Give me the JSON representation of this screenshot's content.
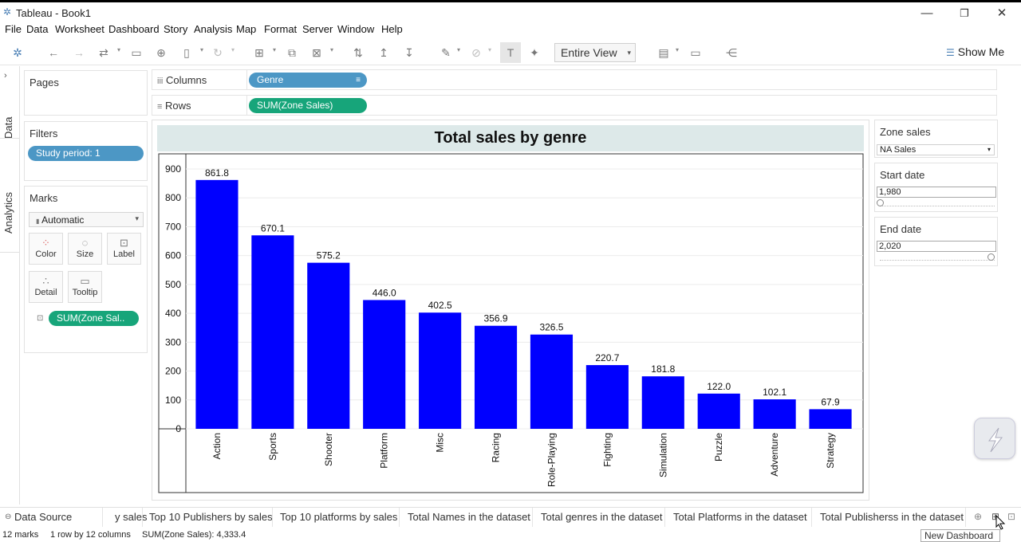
{
  "window": {
    "title": "Tableau - Book1"
  },
  "menu": [
    "File",
    "Data",
    "Worksheet",
    "Dashboard",
    "Story",
    "Analysis",
    "Map",
    "Format",
    "Server",
    "Window",
    "Help"
  ],
  "toolbar": {
    "fit_value": "Entire View",
    "show_me": "Show Me"
  },
  "side_tabs": {
    "data": "Data",
    "analytics": "Analytics"
  },
  "pages": {
    "title": "Pages"
  },
  "filters": {
    "title": "Filters",
    "pill": "Study period: 1"
  },
  "marks": {
    "title": "Marks",
    "type": "Automatic",
    "buttons": [
      "Color",
      "Size",
      "Label",
      "Detail",
      "Tooltip"
    ],
    "pill": "SUM(Zone Sal.."
  },
  "shelves": {
    "columns_label": "Columns",
    "columns_pill": "Genre",
    "rows_label": "Rows",
    "rows_pill": "SUM(Zone Sales)"
  },
  "controls": {
    "zone_sales": {
      "title": "Zone sales",
      "value": "NA Sales"
    },
    "start_date": {
      "title": "Start date",
      "value": "1,980",
      "position": 0
    },
    "end_date": {
      "title": "End date",
      "value": "2,020",
      "position": 1
    }
  },
  "chart_data": {
    "type": "bar",
    "title": "Total sales by genre",
    "categories": [
      "Action",
      "Sports",
      "Shooter",
      "Platform",
      "Misc",
      "Racing",
      "Role-Playing",
      "Fighting",
      "Simulation",
      "Puzzle",
      "Adventure",
      "Strategy"
    ],
    "values": [
      861.8,
      670.1,
      575.2,
      446.0,
      402.5,
      356.9,
      326.5,
      220.7,
      181.8,
      122.0,
      102.1,
      67.9
    ],
    "value_labels": [
      "861.8",
      "670.1",
      "575.2",
      "446.0",
      "402.5",
      "356.9",
      "326.5",
      "220.7",
      "181.8",
      "122.0",
      "102.1",
      "67.9"
    ],
    "yticks": [
      0,
      100,
      200,
      300,
      400,
      500,
      600,
      700,
      800,
      900
    ],
    "ylim": [
      0,
      900
    ],
    "bar_color": "#0000ff",
    "grid": true
  },
  "sheet_tabs": {
    "data_source": "Data Source",
    "tabs": [
      "y sales",
      "Top 10 Publishers by sales",
      "Top 10 platforms by sales",
      "Total Names in the dataset",
      "Total genres in the dataset",
      "Total Platforms in the dataset",
      "Total Publisherss in the dataset"
    ]
  },
  "status": {
    "marks": "12 marks",
    "dims": "1 row by 12 columns",
    "sum": "SUM(Zone Sales): 4,333.4"
  },
  "tooltip": "New Dashboard"
}
